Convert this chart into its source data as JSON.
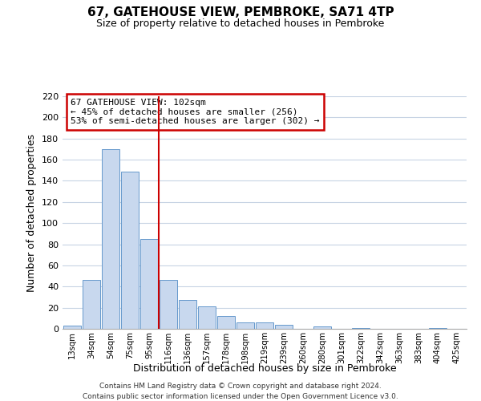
{
  "title": "67, GATEHOUSE VIEW, PEMBROKE, SA71 4TP",
  "subtitle": "Size of property relative to detached houses in Pembroke",
  "xlabel": "Distribution of detached houses by size in Pembroke",
  "ylabel": "Number of detached properties",
  "bar_labels": [
    "13sqm",
    "34sqm",
    "54sqm",
    "75sqm",
    "95sqm",
    "116sqm",
    "136sqm",
    "157sqm",
    "178sqm",
    "198sqm",
    "219sqm",
    "239sqm",
    "260sqm",
    "280sqm",
    "301sqm",
    "322sqm",
    "342sqm",
    "363sqm",
    "383sqm",
    "404sqm",
    "425sqm"
  ],
  "bar_values": [
    3,
    46,
    170,
    149,
    85,
    46,
    27,
    21,
    12,
    6,
    6,
    4,
    0,
    2,
    0,
    1,
    0,
    0,
    0,
    1,
    0
  ],
  "bar_color": "#c8d8ee",
  "bar_edge_color": "#6699cc",
  "vline_x": 4.5,
  "vline_color": "#cc0000",
  "ylim": [
    0,
    220
  ],
  "yticks": [
    0,
    20,
    40,
    60,
    80,
    100,
    120,
    140,
    160,
    180,
    200,
    220
  ],
  "annotation_title": "67 GATEHOUSE VIEW: 102sqm",
  "annotation_line1": "← 45% of detached houses are smaller (256)",
  "annotation_line2": "53% of semi-detached houses are larger (302) →",
  "annotation_box_color": "#ffffff",
  "annotation_box_edge": "#cc0000",
  "footer1": "Contains HM Land Registry data © Crown copyright and database right 2024.",
  "footer2": "Contains public sector information licensed under the Open Government Licence v3.0.",
  "background_color": "#ffffff",
  "grid_color": "#c8d4e4"
}
